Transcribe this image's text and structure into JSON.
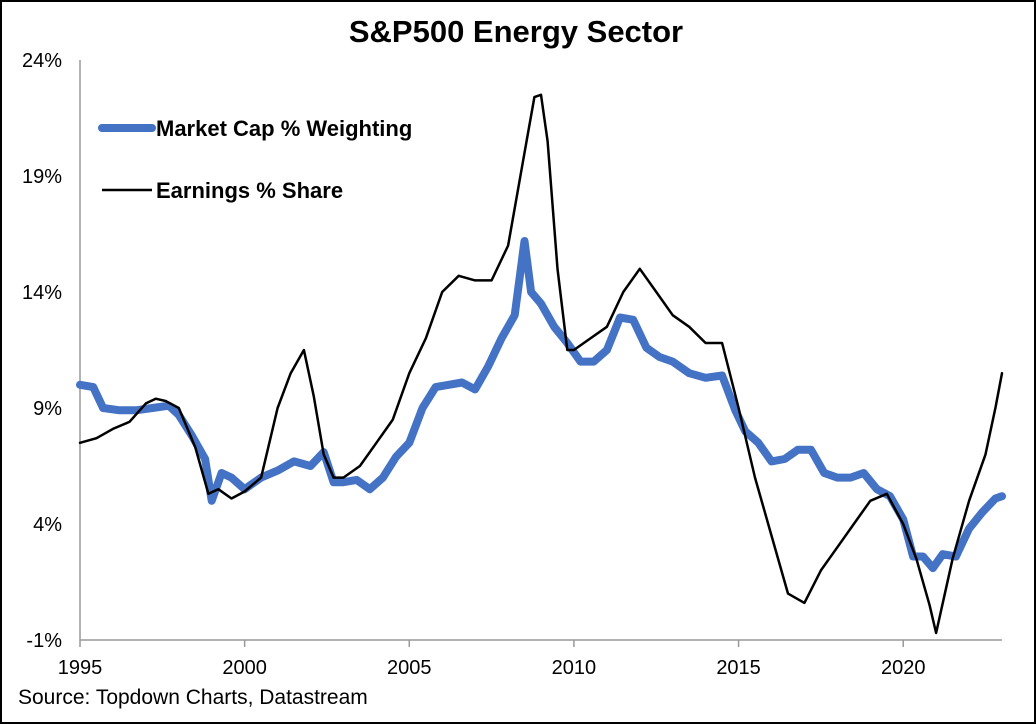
{
  "chart_data": {
    "type": "line",
    "title": "S&P500 Energy Sector",
    "source": "Source: Topdown Charts, Datastream",
    "xlabel": "",
    "ylabel": "",
    "xlim": [
      1995,
      2023.0
    ],
    "ylim": [
      -1,
      24
    ],
    "y_ticks": [
      "-1%",
      "4%",
      "9%",
      "14%",
      "19%",
      "24%"
    ],
    "x_ticks": [
      "1995",
      "2000",
      "2005",
      "2010",
      "2015",
      "2020"
    ],
    "grid": false,
    "legend_position": "top-left",
    "colors": {
      "market_cap": "#4472C4",
      "earnings": "#000000"
    },
    "series": [
      {
        "name": "Market Cap % Weighting",
        "x": [
          1995.0,
          1995.4,
          1995.7,
          1996.2,
          1996.7,
          1997.2,
          1997.7,
          1998.0,
          1998.4,
          1998.8,
          1999.0,
          1999.3,
          1999.6,
          2000.0,
          2000.5,
          2001.0,
          2001.5,
          2002.0,
          2002.4,
          2002.7,
          2003.0,
          2003.4,
          2003.8,
          2004.2,
          2004.6,
          2005.0,
          2005.4,
          2005.8,
          2006.2,
          2006.6,
          2007.0,
          2007.4,
          2007.8,
          2008.2,
          2008.5,
          2008.7,
          2009.0,
          2009.4,
          2009.8,
          2010.2,
          2010.6,
          2011.0,
          2011.4,
          2011.8,
          2012.2,
          2012.6,
          2013.0,
          2013.5,
          2014.0,
          2014.5,
          2014.9,
          2015.2,
          2015.6,
          2016.0,
          2016.4,
          2016.8,
          2017.2,
          2017.6,
          2018.0,
          2018.4,
          2018.8,
          2019.2,
          2019.6,
          2020.0,
          2020.3,
          2020.6,
          2020.9,
          2021.2,
          2021.6,
          2022.0,
          2022.4,
          2022.8,
          2023.0
        ],
        "values": [
          10.0,
          9.9,
          9.0,
          8.9,
          8.9,
          9.0,
          9.1,
          8.7,
          7.8,
          6.8,
          5.0,
          6.2,
          6.0,
          5.5,
          6.0,
          6.3,
          6.7,
          6.5,
          7.1,
          5.8,
          5.8,
          5.9,
          5.5,
          6.0,
          6.9,
          7.5,
          9.0,
          9.9,
          10.0,
          10.1,
          9.8,
          10.8,
          12.0,
          13.0,
          16.2,
          14.0,
          13.5,
          12.5,
          11.8,
          11.0,
          11.0,
          11.5,
          12.9,
          12.8,
          11.6,
          11.2,
          11.0,
          10.5,
          10.3,
          10.4,
          8.9,
          8.0,
          7.5,
          6.7,
          6.8,
          7.2,
          7.2,
          6.2,
          6.0,
          6.0,
          6.2,
          5.5,
          5.2,
          4.2,
          2.6,
          2.6,
          2.1,
          2.7,
          2.6,
          3.8,
          4.5,
          5.1,
          5.2
        ]
      },
      {
        "name": "Earnings % Share",
        "x": [
          1995.0,
          1995.5,
          1996.0,
          1996.5,
          1997.0,
          1997.3,
          1997.6,
          1998.0,
          1998.5,
          1998.9,
          1999.2,
          1999.6,
          2000.0,
          2000.5,
          2001.0,
          2001.4,
          2001.8,
          2002.1,
          2002.4,
          2002.7,
          2003.0,
          2003.5,
          2004.0,
          2004.5,
          2005.0,
          2005.5,
          2006.0,
          2006.5,
          2007.0,
          2007.5,
          2008.0,
          2008.5,
          2008.8,
          2009.0,
          2009.2,
          2009.5,
          2009.8,
          2010.0,
          2010.5,
          2011.0,
          2011.5,
          2012.0,
          2012.5,
          2013.0,
          2013.5,
          2014.0,
          2014.5,
          2015.0,
          2015.5,
          2016.0,
          2016.5,
          2017.0,
          2017.5,
          2018.0,
          2018.5,
          2019.0,
          2019.5,
          2020.0,
          2020.4,
          2020.8,
          2021.0,
          2021.5,
          2022.0,
          2022.5,
          2022.8,
          2023.0
        ],
        "values": [
          7.5,
          7.7,
          8.1,
          8.4,
          9.2,
          9.4,
          9.3,
          9.0,
          7.3,
          5.3,
          5.5,
          5.1,
          5.4,
          6.0,
          9.0,
          10.5,
          11.5,
          9.5,
          7.0,
          6.0,
          6.0,
          6.5,
          7.5,
          8.5,
          10.5,
          12.0,
          14.0,
          14.7,
          14.5,
          14.5,
          16.0,
          20.0,
          22.4,
          22.5,
          20.5,
          15.0,
          11.5,
          11.5,
          12.0,
          12.5,
          14.0,
          15.0,
          14.0,
          13.0,
          12.5,
          11.8,
          11.8,
          9.0,
          6.0,
          3.5,
          1.0,
          0.6,
          2.0,
          3.0,
          4.0,
          5.0,
          5.3,
          4.0,
          2.5,
          0.5,
          -0.7,
          2.5,
          5.0,
          7.0,
          9.0,
          10.5
        ]
      }
    ]
  }
}
